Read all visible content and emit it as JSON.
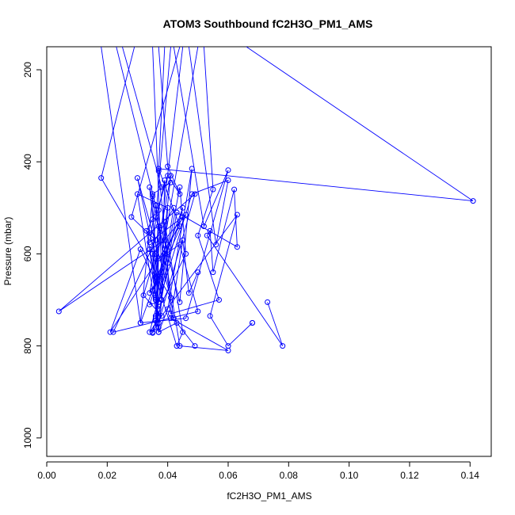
{
  "chart_data": {
    "type": "line",
    "title": "ATOM3 Southbound fC2H3O_PM1_AMS",
    "xlabel": "fC2H3O_PM1_AMS",
    "ylabel": "Pressure (mbar)",
    "xlim": [
      0.0,
      0.147
    ],
    "ylim": [
      1040,
      150
    ],
    "y_reversed": true,
    "grid": false,
    "series_color": "#0000ff",
    "x_ticks": [
      {
        "value": 0.0,
        "label": "0.00"
      },
      {
        "value": 0.02,
        "label": "0.02"
      },
      {
        "value": 0.04,
        "label": "0.04"
      },
      {
        "value": 0.06,
        "label": "0.06"
      },
      {
        "value": 0.08,
        "label": "0.08"
      },
      {
        "value": 0.1,
        "label": "0.10"
      },
      {
        "value": 0.12,
        "label": "0.12"
      },
      {
        "value": 0.14,
        "label": "0.14"
      }
    ],
    "y_ticks": [
      {
        "value": 200,
        "label": "200"
      },
      {
        "value": 400,
        "label": "400"
      },
      {
        "value": 600,
        "label": "600"
      },
      {
        "value": 800,
        "label": "800"
      },
      {
        "value": 1000,
        "label": "1000"
      }
    ],
    "series": [
      {
        "x": [
          0.029,
          0.018,
          0.041,
          0.03,
          0.034,
          0.036,
          0.032,
          0.038,
          0.035,
          0.036,
          0.035
        ],
        "y": [
          150,
          435,
          695,
          435,
          555,
          600,
          690,
          735,
          772,
          745,
          770
        ]
      },
      {
        "x": [
          0.042,
          0.052,
          0.06,
          0.046,
          0.031,
          0.035,
          0.036,
          0.037,
          0.036
        ],
        "y": [
          150,
          540,
          418,
          740,
          750,
          475,
          700,
          770,
          610
        ]
      },
      {
        "x": [
          0.052,
          0.055,
          0.05,
          0.057,
          0.041,
          0.039,
          0.045,
          0.043,
          0.036
        ],
        "y": [
          150,
          460,
          560,
          700,
          730,
          530,
          770,
          800,
          650
        ]
      },
      {
        "x": [
          0.023,
          0.036,
          0.034,
          0.045,
          0.039,
          0.044,
          0.06,
          0.041,
          0.045,
          0.047,
          0.05
        ],
        "y": [
          150,
          495,
          575,
          520,
          600,
          800,
          810,
          740,
          570,
          685,
          640
        ]
      },
      {
        "x": [
          0.025,
          0.038,
          0.041,
          0.035,
          0.044,
          0.048,
          0.04,
          0.037,
          0.043,
          0.049
        ],
        "y": [
          150,
          455,
          445,
          470,
          705,
          415,
          720,
          770,
          750,
          800
        ]
      },
      {
        "x": [
          0.039,
          0.037,
          0.04,
          0.034,
          0.038,
          0.04,
          0.03,
          0.037
        ],
        "y": [
          150,
          420,
          620,
          455,
          700,
          500,
          470,
          760
        ]
      },
      {
        "x": [
          0.047,
          0.056,
          0.06,
          0.048,
          0.037,
          0.034,
          0.037,
          0.036
        ],
        "y": [
          150,
          580,
          440,
          470,
          705,
          710,
          650,
          740
        ]
      },
      {
        "x": [
          0.018,
          0.031,
          0.045,
          0.034,
          0.063,
          0.054,
          0.06,
          0.068,
          0.068
        ],
        "y": [
          150,
          750,
          500,
          770,
          515,
          735,
          800,
          750,
          750
        ]
      },
      {
        "x": [
          0.041,
          0.035,
          0.036,
          0.037,
          0.043,
          0.063,
          0.062,
          0.055,
          0.054,
          0.053,
          0.078,
          0.073
        ],
        "y": [
          150,
          600,
          695,
          735,
          510,
          585,
          460,
          640,
          550,
          560,
          800,
          705
        ]
      },
      {
        "x": [
          0.037,
          0.04,
          0.044,
          0.04,
          0.036,
          0.039,
          0.036,
          0.037,
          0.042
        ],
        "y": [
          150,
          410,
          470,
          430,
          520,
          590,
          760,
          540,
          740
        ]
      },
      {
        "x": [
          0.045,
          0.036,
          0.037,
          0.039,
          0.038,
          0.037,
          0.035,
          0.046,
          0.035
        ],
        "y": [
          150,
          650,
          505,
          440,
          700,
          770,
          600,
          515,
          680
        ]
      },
      {
        "x": [
          0.066,
          0.141,
          0.037,
          0.044,
          0.021,
          0.031,
          0.036,
          0.033,
          0.035
        ],
        "y": [
          150,
          485,
          415,
          540,
          770,
          590,
          660,
          550,
          525
        ]
      },
      {
        "x": [
          0.05,
          0.039,
          0.004,
          0.049,
          0.037,
          0.034,
          0.042,
          0.04,
          0.036
        ],
        "y": [
          150,
          570,
          725,
          470,
          750,
          590,
          500,
          580,
          690
        ]
      },
      {
        "x": [
          0.044,
          0.028,
          0.036,
          0.022,
          0.05,
          0.044,
          0.037,
          0.036
        ],
        "y": [
          150,
          520,
          570,
          770,
          725,
          580,
          610,
          760
        ]
      },
      {
        "x": [
          0.035,
          0.038,
          0.034,
          0.041,
          0.036,
          0.044,
          0.046,
          0.037
        ],
        "y": [
          150,
          640,
          685,
          430,
          735,
          455,
          600,
          720
        ]
      }
    ]
  }
}
